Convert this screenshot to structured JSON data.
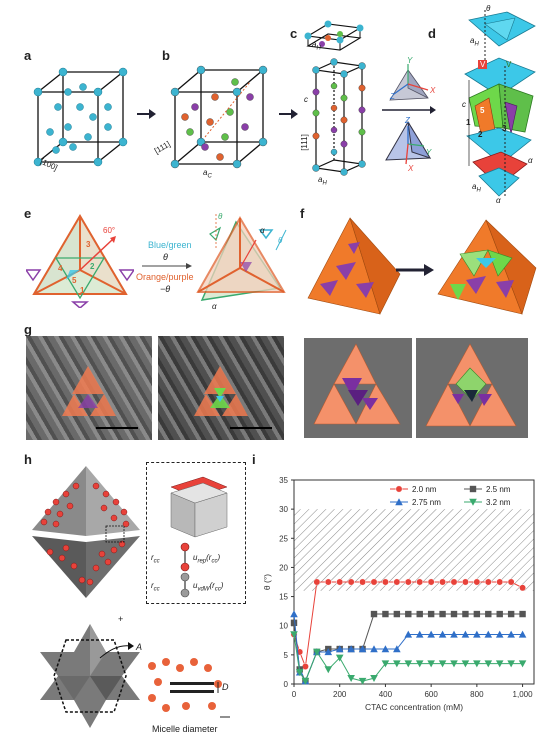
{
  "panels": {
    "a": "a",
    "b": "b",
    "c": "c",
    "d": "d",
    "e": "e",
    "f": "f",
    "g": "g",
    "h": "h",
    "i": "i"
  },
  "labels_a": {
    "dir": "[100]"
  },
  "labels_b": {
    "dir": "[111]",
    "ac": "a",
    "ac_sub": "C"
  },
  "labels_c": {
    "aH_top": "a",
    "aH_sub": "H",
    "c": "c",
    "dir": "[111]",
    "aH_bottom": "a",
    "aH_bottom_sub": "H",
    "axes_top": {
      "Y": "Y",
      "Z": "Z",
      "X": "X"
    },
    "axes_bottom": {
      "Z": "Z",
      "Y": "Y",
      "X": "X"
    }
  },
  "labels_d": {
    "theta": "θ",
    "aH": "a",
    "aH_sub": "H",
    "V1": "V",
    "V2": "V",
    "c": "c",
    "n1": "1",
    "n2": "2",
    "n3": "3",
    "n5": "5",
    "alpha1": "α",
    "alpha2": "α",
    "aH_b": "a",
    "aH_b_sub": "H"
  },
  "labels_e": {
    "angle": "60°",
    "n3": "3",
    "n2": "2",
    "n4": "4",
    "n5": "5",
    "n1": "1",
    "bg_text": "Blue/green",
    "theta": "θ",
    "op_text": "Orange/purple",
    "neg_theta": "−θ",
    "theta_r": "θ",
    "alpha_r": "α",
    "alpha_l": "α",
    "theta_r2": "θ"
  },
  "labels_h": {
    "plus": "+",
    "rcc1": "r",
    "rcc1_sub": "cc",
    "urep": "u",
    "urep_sub": "rep",
    "urep_arg": "(r",
    "urep_arg_sub": "cc",
    "urep_close": ")",
    "rcc2": "r",
    "rcc2_sub": "cc",
    "uvdw": "u",
    "uvdw_sub": "vdW",
    "uvdw_arg": "(r",
    "uvdw_arg_sub": "cc",
    "uvdw_close": ")",
    "A": "A",
    "D": "D",
    "micelle": "Micelle diameter"
  },
  "chart_data": {
    "type": "line",
    "xlabel": "CTAC concentration (mM)",
    "ylabel": "θ (°)",
    "xlim": [
      0,
      1050
    ],
    "ylim": [
      0,
      35
    ],
    "xticks": [
      "0",
      "200",
      "400",
      "600",
      "800",
      "1,000"
    ],
    "xtick_values": [
      0,
      200,
      400,
      600,
      800,
      1000
    ],
    "yticks": [
      "0",
      "5",
      "10",
      "15",
      "20",
      "25",
      "30",
      "35"
    ],
    "ytick_values": [
      0,
      5,
      10,
      15,
      20,
      25,
      30,
      35
    ],
    "hatched_band": [
      16,
      30
    ],
    "legend_position": "top-right",
    "series": [
      {
        "name": "2.0 nm",
        "color": "#e8423a",
        "marker": "circle",
        "x": [
          0,
          25,
          50,
          100,
          150,
          200,
          250,
          300,
          350,
          400,
          450,
          500,
          550,
          600,
          650,
          700,
          750,
          800,
          850,
          900,
          950,
          1000
        ],
        "y": [
          8.5,
          5.5,
          3.0,
          17.5,
          17.5,
          17.5,
          17.5,
          17.5,
          17.5,
          17.5,
          17.5,
          17.5,
          17.5,
          17.5,
          17.5,
          17.5,
          17.5,
          17.5,
          17.5,
          17.5,
          17.5,
          16.5
        ]
      },
      {
        "name": "2.5 nm",
        "color": "#555555",
        "marker": "square",
        "x": [
          0,
          25,
          50,
          100,
          150,
          200,
          250,
          300,
          350,
          400,
          450,
          500,
          550,
          600,
          650,
          700,
          750,
          800,
          850,
          900,
          950,
          1000
        ],
        "y": [
          10.5,
          2.5,
          0.5,
          5.5,
          6.0,
          6.0,
          6.0,
          6.0,
          12.0,
          12.0,
          12.0,
          12.0,
          12.0,
          12.0,
          12.0,
          12.0,
          12.0,
          12.0,
          12.0,
          12.0,
          12.0,
          12.0
        ]
      },
      {
        "name": "2.75 nm",
        "color": "#2f6fc8",
        "marker": "triangle-up",
        "x": [
          0,
          25,
          50,
          100,
          150,
          200,
          250,
          300,
          350,
          400,
          450,
          500,
          550,
          600,
          650,
          700,
          750,
          800,
          850,
          900,
          950,
          1000
        ],
        "y": [
          12.0,
          2.0,
          0.5,
          5.5,
          5.5,
          6.0,
          6.0,
          6.0,
          6.0,
          6.0,
          6.0,
          8.5,
          8.5,
          8.5,
          8.5,
          8.5,
          8.5,
          8.5,
          8.5,
          8.5,
          8.5,
          8.5
        ]
      },
      {
        "name": "3.2 nm",
        "color": "#3aaa6e",
        "marker": "triangle-down",
        "x": [
          0,
          25,
          50,
          100,
          150,
          200,
          250,
          300,
          350,
          400,
          450,
          500,
          550,
          600,
          650,
          700,
          750,
          800,
          850,
          900,
          950,
          1000
        ],
        "y": [
          8.5,
          2.0,
          0.5,
          5.5,
          2.5,
          4.5,
          1.0,
          0.5,
          1.0,
          3.5,
          3.5,
          3.5,
          3.5,
          3.5,
          3.5,
          3.5,
          3.5,
          3.5,
          3.5,
          3.5,
          3.5,
          3.5
        ]
      }
    ]
  }
}
